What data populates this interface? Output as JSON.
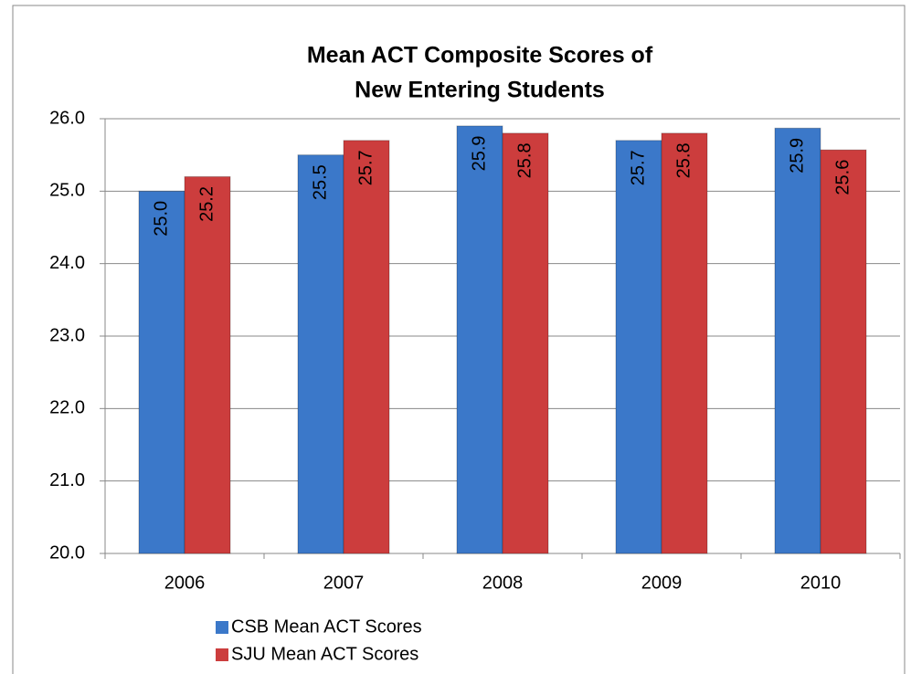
{
  "chart_data": {
    "type": "bar",
    "title": [
      "Mean ACT Composite Scores of",
      "New Entering Students"
    ],
    "categories": [
      "2006",
      "2007",
      "2008",
      "2009",
      "2010"
    ],
    "series": [
      {
        "name": "CSB Mean ACT Scores",
        "color": "#3b78c9",
        "values": [
          25.0,
          25.5,
          25.9,
          25.7,
          25.87
        ],
        "value_labels": [
          "25.0",
          "25.5",
          "25.9",
          "25.7",
          "25.9"
        ]
      },
      {
        "name": "SJU Mean ACT Scores",
        "color": "#cc3d3d",
        "values": [
          25.2,
          25.7,
          25.8,
          25.8,
          25.57
        ],
        "value_labels": [
          "25.2",
          "25.7",
          "25.8",
          "25.8",
          "25.6"
        ]
      }
    ],
    "ylim": [
      20,
      26
    ],
    "yticks": [
      {
        "value": 20,
        "label": "20.0"
      },
      {
        "value": 21,
        "label": "21.0"
      },
      {
        "value": 22,
        "label": "22.0"
      },
      {
        "value": 23,
        "label": "23.0"
      },
      {
        "value": 24,
        "label": "24.0"
      },
      {
        "value": 25,
        "label": "25.0"
      },
      {
        "value": 26,
        "label": "26.0"
      }
    ],
    "grid": true
  }
}
